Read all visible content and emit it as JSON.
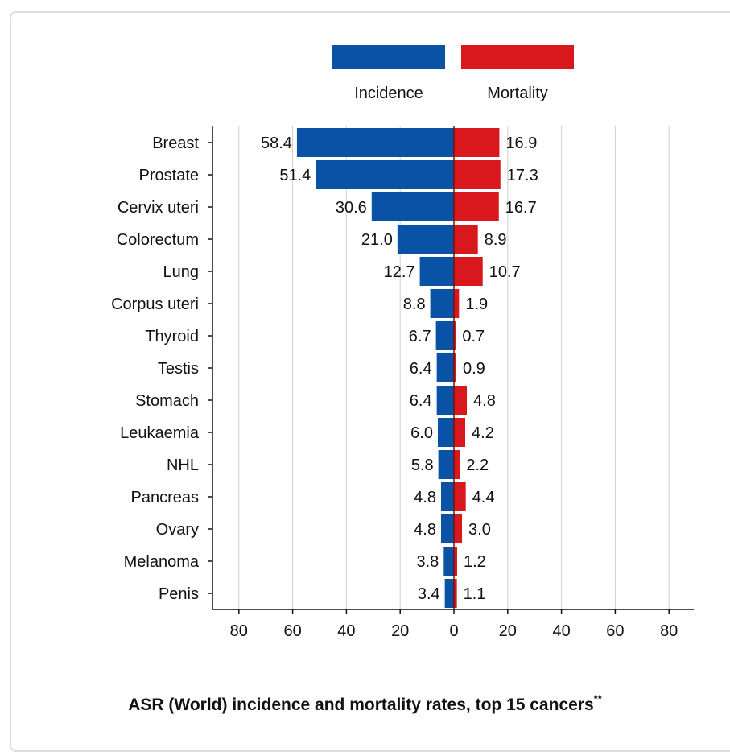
{
  "caption": {
    "text": "ASR (World) incidence and mortality rates, top 15 cancers",
    "superscript": "**"
  },
  "chart_data": {
    "type": "bar",
    "orientation": "horizontal-diverging",
    "categories": [
      "Breast",
      "Prostate",
      "Cervix uteri",
      "Colorectum",
      "Lung",
      "Corpus uteri",
      "Thyroid",
      "Testis",
      "Stomach",
      "Leukaemia",
      "NHL",
      "Pancreas",
      "Ovary",
      "Melanoma",
      "Penis"
    ],
    "series": [
      {
        "name": "Incidence",
        "color": "#0a52a5",
        "side": "left",
        "values": [
          58.4,
          51.4,
          30.6,
          21.0,
          12.7,
          8.8,
          6.7,
          6.4,
          6.4,
          6.0,
          5.8,
          4.8,
          4.8,
          3.8,
          3.4
        ],
        "labels": [
          "58.4",
          "51.4",
          "30.6",
          "21.0",
          "12.7",
          "8.8",
          "6.7",
          "6.4",
          "6.4",
          "6.0",
          "5.8",
          "4.8",
          "4.8",
          "3.8",
          "3.4"
        ]
      },
      {
        "name": "Mortality",
        "color": "#d9181e",
        "side": "right",
        "values": [
          16.9,
          17.3,
          16.7,
          8.9,
          10.7,
          1.9,
          0.7,
          0.9,
          4.8,
          4.2,
          2.2,
          4.4,
          3.0,
          1.2,
          1.1
        ],
        "labels": [
          "16.9",
          "17.3",
          "16.7",
          "8.9",
          "10.7",
          "1.9",
          "0.7",
          "0.9",
          "4.8",
          "4.2",
          "2.2",
          "4.4",
          "3.0",
          "1.2",
          "1.1"
        ]
      }
    ],
    "xlim": [
      -90,
      90
    ],
    "xticks": [
      -80,
      -60,
      -40,
      -20,
      0,
      20,
      40,
      60,
      80
    ],
    "xtick_labels": [
      "80",
      "60",
      "40",
      "20",
      "0",
      "20",
      "40",
      "60",
      "80"
    ],
    "grid": true,
    "legend": "top-center"
  }
}
